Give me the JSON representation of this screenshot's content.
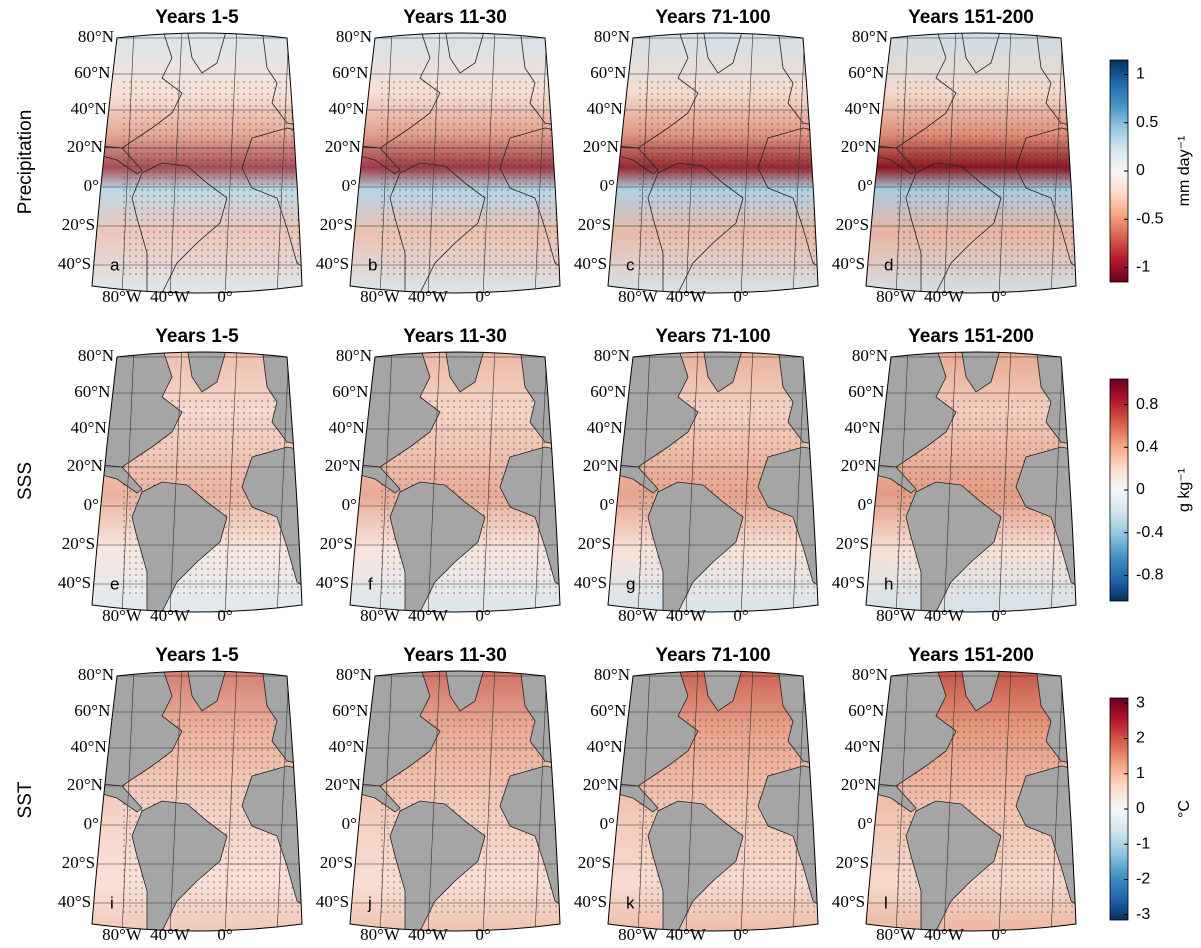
{
  "lat_labels": [
    "80°N",
    "60°N",
    "40°N",
    "20°N",
    "0°",
    "20°S",
    "40°S"
  ],
  "lon_labels": [
    "80°W",
    "40°W",
    "0°"
  ],
  "rows": [
    {
      "label": "Precipitation",
      "panels": [
        {
          "title": "Years 1-5",
          "letter": "a"
        },
        {
          "title": "Years 11-30",
          "letter": "b"
        },
        {
          "title": "Years 71-100",
          "letter": "c"
        },
        {
          "title": "Years 151-200",
          "letter": "d"
        }
      ],
      "colorbar": {
        "label": "mm day⁻¹",
        "lim": [
          -1.15,
          1.15
        ],
        "ticks": [
          1,
          0.5,
          0,
          -0.5,
          -1
        ],
        "colors": [
          "#67001f",
          "#b2182b",
          "#d6604d",
          "#f4a582",
          "#fddbc7",
          "#f7f7f7",
          "#d1e5f0",
          "#92c5de",
          "#4393c3",
          "#2166ac",
          "#053061"
        ]
      }
    },
    {
      "label": "SSS",
      "panels": [
        {
          "title": "Years 1-5",
          "letter": "e"
        },
        {
          "title": "Years 11-30",
          "letter": "f"
        },
        {
          "title": "Years 71-100",
          "letter": "g"
        },
        {
          "title": "Years 151-200",
          "letter": "h"
        }
      ],
      "colorbar": {
        "label": "g kg⁻¹",
        "lim": [
          -1.04,
          1.04
        ],
        "ticks": [
          0.8,
          0.4,
          0,
          -0.4,
          -0.8
        ],
        "colors": [
          "#053061",
          "#2166ac",
          "#4393c3",
          "#92c5de",
          "#d1e5f0",
          "#f7f7f7",
          "#fddbc7",
          "#f4a582",
          "#d6604d",
          "#b2182b",
          "#67001f"
        ]
      }
    },
    {
      "label": "SST",
      "panels": [
        {
          "title": "Years 1-5",
          "letter": "i"
        },
        {
          "title": "Years 11-30",
          "letter": "j"
        },
        {
          "title": "Years 71-100",
          "letter": "k"
        },
        {
          "title": "Years 151-200",
          "letter": "l"
        }
      ],
      "colorbar": {
        "label": "°C",
        "lim": [
          -3.15,
          3.15
        ],
        "ticks": [
          3,
          2,
          1,
          0,
          -1,
          -2,
          -3
        ],
        "colors": [
          "#053061",
          "#2166ac",
          "#4393c3",
          "#92c5de",
          "#d1e5f0",
          "#f7f7f7",
          "#fddbc7",
          "#f4a582",
          "#d6604d",
          "#b2182b",
          "#67001f"
        ]
      }
    }
  ]
}
